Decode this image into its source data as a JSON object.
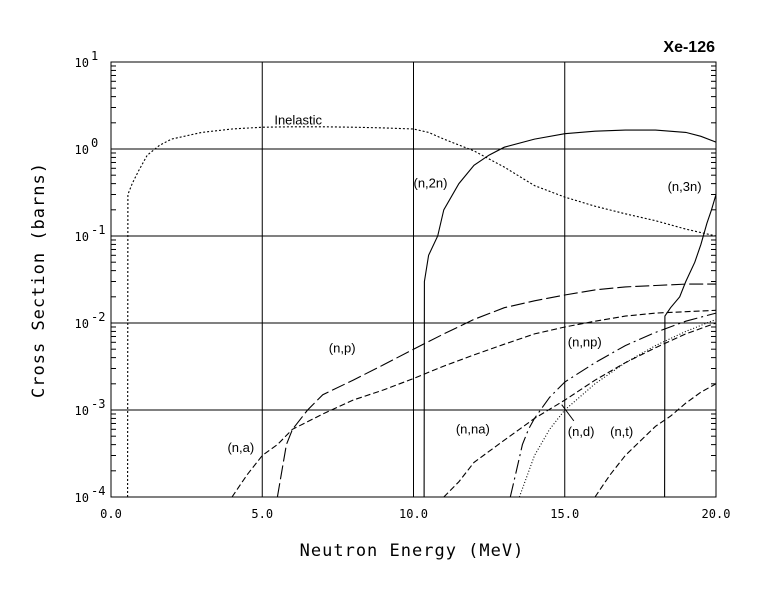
{
  "chart_data": {
    "type": "line",
    "title": "Xe-126",
    "xlabel": "Neutron Energy (MeV)",
    "ylabel": "Cross Section (barns)",
    "xlim": [
      0,
      20
    ],
    "ylim": [
      0.0001,
      10
    ],
    "yscale": "log",
    "grid": true,
    "x_ticks": [
      {
        "value": 0,
        "label": "0.0"
      },
      {
        "value": 5,
        "label": "5.0"
      },
      {
        "value": 10,
        "label": "10.0"
      },
      {
        "value": 15,
        "label": "15.0"
      },
      {
        "value": 20,
        "label": "20.0"
      }
    ],
    "y_ticks": [
      {
        "value": 10,
        "mant": "10",
        "exp": "1"
      },
      {
        "value": 1,
        "mant": "10",
        "exp": "0"
      },
      {
        "value": 0.1,
        "mant": "10",
        "exp": "-1"
      },
      {
        "value": 0.01,
        "mant": "10",
        "exp": "-2"
      },
      {
        "value": 0.001,
        "mant": "10",
        "exp": "-3"
      },
      {
        "value": 0.0001,
        "mant": "10",
        "exp": "-4"
      }
    ],
    "series": [
      {
        "name": "Inelastic",
        "dash": "2,2",
        "label_at": [
          5.4,
          1.9
        ],
        "points": [
          [
            0.55,
            0.0001
          ],
          [
            0.56,
            0.3
          ],
          [
            0.7,
            0.4
          ],
          [
            0.9,
            0.55
          ],
          [
            1.2,
            0.85
          ],
          [
            1.6,
            1.1
          ],
          [
            2,
            1.3
          ],
          [
            3,
            1.55
          ],
          [
            4,
            1.7
          ],
          [
            5,
            1.78
          ],
          [
            6,
            1.8
          ],
          [
            7,
            1.8
          ],
          [
            8,
            1.78
          ],
          [
            9,
            1.75
          ],
          [
            10,
            1.7
          ],
          [
            10.5,
            1.55
          ],
          [
            11,
            1.3
          ],
          [
            12,
            0.95
          ],
          [
            13,
            0.62
          ],
          [
            14,
            0.38
          ],
          [
            15,
            0.28
          ],
          [
            16,
            0.22
          ],
          [
            17,
            0.18
          ],
          [
            18,
            0.15
          ],
          [
            19,
            0.12
          ],
          [
            20,
            0.1
          ]
        ]
      },
      {
        "name": "(n,2n)",
        "dash": "",
        "label_at": [
          10.0,
          0.36
        ],
        "points": [
          [
            10.35,
            0.0001
          ],
          [
            10.36,
            0.03
          ],
          [
            10.5,
            0.06
          ],
          [
            10.8,
            0.1
          ],
          [
            11,
            0.2
          ],
          [
            11.5,
            0.4
          ],
          [
            12,
            0.65
          ],
          [
            12.5,
            0.85
          ],
          [
            13,
            1.05
          ],
          [
            14,
            1.3
          ],
          [
            15,
            1.5
          ],
          [
            16,
            1.6
          ],
          [
            17,
            1.65
          ],
          [
            18,
            1.65
          ],
          [
            19,
            1.55
          ],
          [
            19.5,
            1.4
          ],
          [
            20,
            1.2
          ]
        ]
      },
      {
        "name": "(n,3n)",
        "dash": "",
        "label_at": [
          18.4,
          0.33
        ],
        "points": [
          [
            18.3,
            0.0001
          ],
          [
            18.31,
            0.012
          ],
          [
            18.5,
            0.015
          ],
          [
            18.8,
            0.02
          ],
          [
            19,
            0.03
          ],
          [
            19.3,
            0.05
          ],
          [
            19.5,
            0.08
          ],
          [
            19.7,
            0.14
          ],
          [
            19.85,
            0.2
          ],
          [
            20,
            0.3
          ]
        ]
      },
      {
        "name": "(n,p)",
        "dash": "14,4",
        "label_at": [
          7.2,
          0.0046
        ],
        "points": [
          [
            5.5,
            0.0001
          ],
          [
            5.8,
            0.0004
          ],
          [
            6,
            0.0006
          ],
          [
            6.5,
            0.001
          ],
          [
            7,
            0.0015
          ],
          [
            8,
            0.0022
          ],
          [
            9,
            0.0033
          ],
          [
            10,
            0.005
          ],
          [
            11,
            0.0075
          ],
          [
            12,
            0.011
          ],
          [
            13,
            0.015
          ],
          [
            14,
            0.018
          ],
          [
            15,
            0.021
          ],
          [
            16,
            0.024
          ],
          [
            17,
            0.026
          ],
          [
            18,
            0.027
          ],
          [
            19,
            0.028
          ],
          [
            20,
            0.028
          ]
        ]
      },
      {
        "name": "(n,a)",
        "dash": "6,3",
        "label_at": [
          3.85,
          0.00033
        ],
        "points": [
          [
            4,
            0.0001
          ],
          [
            4.5,
            0.00018
          ],
          [
            5,
            0.0003
          ],
          [
            5.5,
            0.0004
          ],
          [
            6,
            0.0006
          ],
          [
            7,
            0.0009
          ],
          [
            8,
            0.0013
          ],
          [
            9,
            0.0017
          ],
          [
            10,
            0.0023
          ],
          [
            11,
            0.0032
          ],
          [
            12,
            0.0043
          ],
          [
            13,
            0.0057
          ],
          [
            14,
            0.0075
          ],
          [
            15,
            0.009
          ],
          [
            16,
            0.0105
          ],
          [
            17,
            0.012
          ],
          [
            18,
            0.013
          ],
          [
            19,
            0.0135
          ],
          [
            20,
            0.014
          ]
        ]
      },
      {
        "name": "(n,na)",
        "dash": "6,3",
        "label_at": [
          11.4,
          0.00054
        ],
        "points": [
          [
            11,
            0.0001
          ],
          [
            11.5,
            0.00015
          ],
          [
            12,
            0.00025
          ],
          [
            13,
            0.00045
          ],
          [
            14,
            0.0008
          ],
          [
            15,
            0.0013
          ],
          [
            16,
            0.0022
          ],
          [
            17,
            0.0035
          ],
          [
            18,
            0.0052
          ],
          [
            19,
            0.0075
          ],
          [
            20,
            0.01
          ]
        ]
      },
      {
        "name": "(n,np)",
        "dash": "14,4,2,4",
        "label_at": [
          15.1,
          0.0054
        ],
        "points": [
          [
            13.2,
            0.0001
          ],
          [
            13.4,
            0.0002
          ],
          [
            13.6,
            0.0004
          ],
          [
            13.8,
            0.0006
          ],
          [
            14,
            0.0008
          ],
          [
            14.5,
            0.0014
          ],
          [
            15,
            0.0021
          ],
          [
            16,
            0.0035
          ],
          [
            17,
            0.0055
          ],
          [
            18,
            0.0078
          ],
          [
            19,
            0.0105
          ],
          [
            20,
            0.013
          ]
        ]
      },
      {
        "name": "(n,d)",
        "dash": "1,2",
        "label_at": [
          15.1,
          0.0005
        ],
        "points": [
          [
            13.5,
            0.0001
          ],
          [
            14,
            0.0003
          ],
          [
            14.5,
            0.0006
          ],
          [
            15,
            0.001
          ],
          [
            16,
            0.002
          ],
          [
            17,
            0.0035
          ],
          [
            18,
            0.0055
          ],
          [
            19,
            0.008
          ],
          [
            20,
            0.011
          ]
        ]
      },
      {
        "name": "(n,t)",
        "dash": "6,3",
        "label_at": [
          16.5,
          0.0005
        ],
        "points": [
          [
            16,
            0.0001
          ],
          [
            16.5,
            0.00018
          ],
          [
            17,
            0.0003
          ],
          [
            18,
            0.00065
          ],
          [
            18.5,
            0.00085
          ],
          [
            19,
            0.0012
          ],
          [
            19.5,
            0.0016
          ],
          [
            20,
            0.002
          ]
        ]
      }
    ],
    "leaders": [
      {
        "series": "(n,d)",
        "from": [
          15.3,
          0.00075
        ],
        "to": [
          14.9,
          0.00115
        ]
      }
    ]
  }
}
